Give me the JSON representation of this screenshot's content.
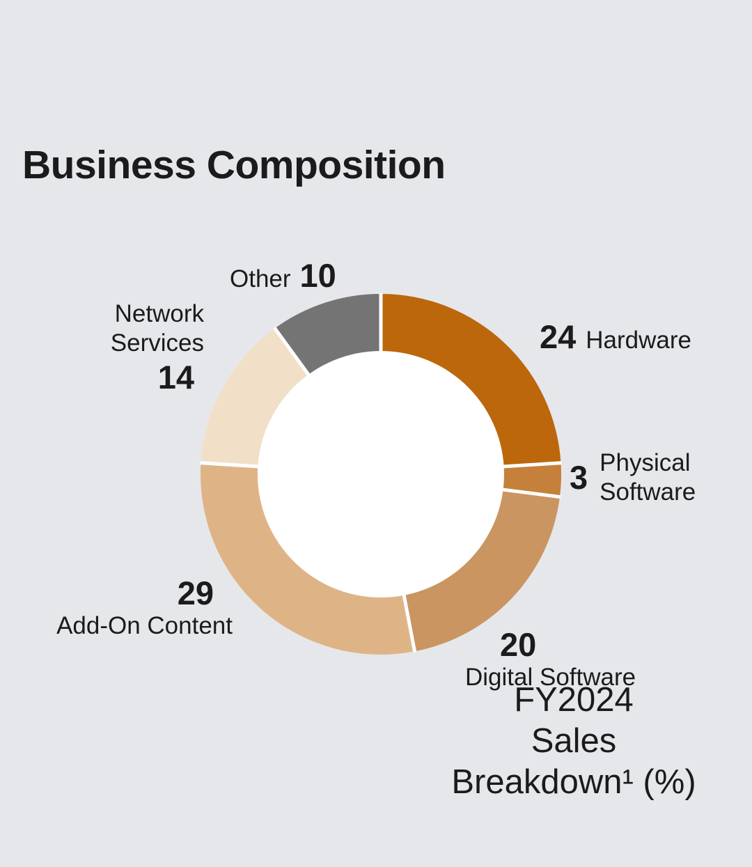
{
  "page": {
    "title": "Business Composition",
    "background_color": "#e6e7ea",
    "text_color": "#1b1b1b"
  },
  "chart_data": {
    "type": "pie",
    "subtype": "donut",
    "title": "FY2024 Sales Breakdown¹ (%)",
    "center_label_lines": [
      "FY2024",
      "Sales",
      "Breakdown¹ (%)"
    ],
    "unit": "percent",
    "total": 100,
    "start_angle_deg": 0,
    "direction": "clockwise",
    "divider_color": "#ffffff",
    "hole_color": "#ffffff",
    "outer_radius_px": 259,
    "inner_radius_px": 177,
    "segments": [
      {
        "label": "Hardware",
        "value": 24,
        "color": "#bc670c"
      },
      {
        "label": "Physical Software",
        "value": 3,
        "color": "#c5803b"
      },
      {
        "label": "Digital Software",
        "value": 20,
        "color": "#ca9560"
      },
      {
        "label": "Add-On Content",
        "value": 29,
        "color": "#deb487"
      },
      {
        "label": "Network Services",
        "value": 14,
        "color": "#f2dfc8"
      },
      {
        "label": "Other",
        "value": 10,
        "color": "#747474"
      }
    ]
  }
}
